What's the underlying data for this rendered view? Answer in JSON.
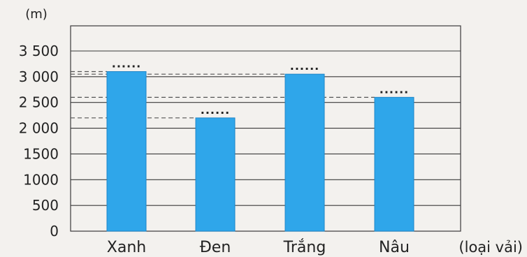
{
  "chart_data": {
    "type": "bar",
    "y_unit_label": "(m)",
    "x_unit_label": "(loại vải)",
    "categories": [
      "Xanh",
      "Đen",
      "Trắng",
      "Nâu"
    ],
    "values": [
      3100,
      2200,
      3050,
      2600
    ],
    "y_ticks": [
      0,
      500,
      1000,
      1500,
      2000,
      2500,
      3000,
      3500
    ],
    "y_tick_labels": [
      "0",
      "500",
      "1000",
      "1500",
      "2 000",
      "2 500",
      "3 000",
      "3 500"
    ],
    "ylim": [
      0,
      3500
    ],
    "grid": true,
    "value_placeholder": "......",
    "colors": {
      "bar": "#2fa6ea",
      "bar_edge": "#1f86c8",
      "grid": "#3a3a3a",
      "text": "#222222",
      "guide": "#555555"
    }
  }
}
